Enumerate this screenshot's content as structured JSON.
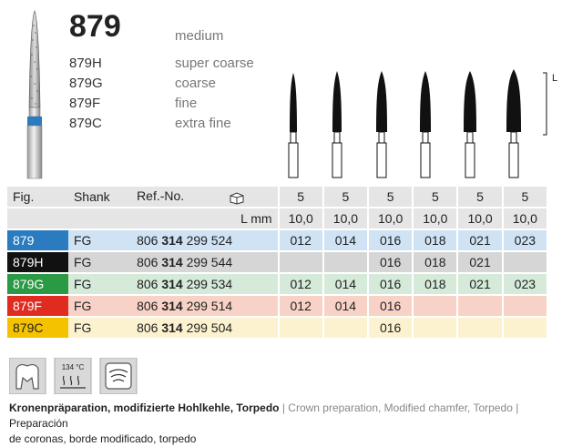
{
  "product": {
    "number": "879",
    "number_grit": "medium",
    "variants": [
      {
        "code": "879H",
        "grit": "super coarse"
      },
      {
        "code": "879G",
        "grit": "coarse"
      },
      {
        "code": "879F",
        "grit": "fine"
      },
      {
        "code": "879C",
        "grit": "extra fine"
      }
    ],
    "dimension_marker": "L"
  },
  "table": {
    "headers": {
      "fig": "Fig.",
      "shank": "Shank",
      "ref": "Ref.-No."
    },
    "pack_counts": [
      "5",
      "5",
      "5",
      "5",
      "5",
      "5"
    ],
    "lmm_label": "L mm",
    "lengths": [
      "10,0",
      "10,0",
      "10,0",
      "10,0",
      "10,0",
      "10,0"
    ],
    "rows": [
      {
        "fig": "879",
        "shank": "FG",
        "ref_a": "806",
        "ref_b": "314",
        "ref_c": "299 524",
        "sizes": [
          "012",
          "014",
          "016",
          "018",
          "021",
          "023"
        ]
      },
      {
        "fig": "879H",
        "shank": "FG",
        "ref_a": "806",
        "ref_b": "314",
        "ref_c": "299 544",
        "sizes": [
          "",
          "",
          "016",
          "018",
          "021",
          ""
        ]
      },
      {
        "fig": "879G",
        "shank": "FG",
        "ref_a": "806",
        "ref_b": "314",
        "ref_c": "299 534",
        "sizes": [
          "012",
          "014",
          "016",
          "018",
          "021",
          "023"
        ]
      },
      {
        "fig": "879F",
        "shank": "FG",
        "ref_a": "806",
        "ref_b": "314",
        "ref_c": "299 514",
        "sizes": [
          "012",
          "014",
          "016",
          "",
          "",
          ""
        ]
      },
      {
        "fig": "879C",
        "shank": "FG",
        "ref_a": "806",
        "ref_b": "314",
        "ref_c": "299 504",
        "sizes": [
          "",
          "",
          "016",
          "",
          "",
          ""
        ]
      }
    ]
  },
  "icons": {
    "sterilize_temp": "134 °C"
  },
  "footer": {
    "de": "Kronenpräparation, modifizierte Hohlkehle, Torpedo",
    "sep1": " | ",
    "en": "Crown preparation, Modified chamfer, Torpedo",
    "sep2": " | ",
    "es1": "Preparación",
    "es2": "de coronas, borde modificado, torpedo"
  },
  "colors": {
    "blue": "#2a7bbf",
    "black": "#111111",
    "green": "#2b9a45",
    "red": "#e02b20",
    "yellow": "#f5c200"
  }
}
